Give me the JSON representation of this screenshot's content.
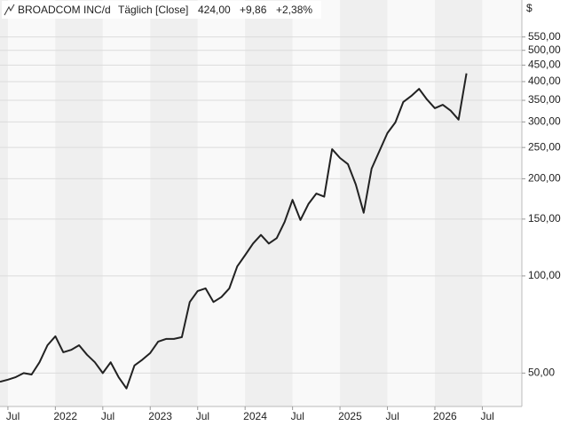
{
  "chart_data": {
    "type": "line",
    "title": "BROADCOM INC/d",
    "subtitle": "Täglich [Close]",
    "last": "424,00",
    "change": "+9,86",
    "change_pct": "+2,38%",
    "unit": "$",
    "color": "#222222",
    "change_color": "#2a9d2a",
    "log_scale": true,
    "grid": true,
    "x": [
      "2021-06",
      "2021-07",
      "2021-08",
      "2021-09",
      "2021-10",
      "2021-11",
      "2021-12",
      "2022-01",
      "2022-02",
      "2022-03",
      "2022-04",
      "2022-05",
      "2022-06",
      "2022-07",
      "2022-08",
      "2022-09",
      "2022-10",
      "2022-11",
      "2022-12",
      "2023-01",
      "2023-02",
      "2023-03",
      "2023-04",
      "2023-05",
      "2023-06",
      "2023-07",
      "2023-08",
      "2023-09",
      "2023-10",
      "2023-11",
      "2023-12",
      "2024-01",
      "2024-02",
      "2024-03",
      "2024-04",
      "2024-05",
      "2024-06",
      "2024-07",
      "2024-08",
      "2024-09",
      "2024-10",
      "2024-11",
      "2024-12",
      "2025-01",
      "2025-02",
      "2025-03",
      "2025-04",
      "2025-05",
      "2025-06",
      "2025-07",
      "2025-08",
      "2025-09",
      "2025-10",
      "2025-11",
      "2025-12",
      "2026-01",
      "2026-02",
      "2026-03",
      "2026-04",
      "2026-05"
    ],
    "values": [
      47,
      47.7,
      48.6,
      50,
      49.5,
      54,
      61,
      65,
      58,
      59,
      61,
      57,
      54,
      50,
      54,
      48.6,
      44.8,
      52.8,
      55,
      57.7,
      62.6,
      63.8,
      63.8,
      64.6,
      83,
      89.8,
      91.5,
      83,
      86,
      91.5,
      107,
      116,
      126,
      134,
      126,
      131,
      147,
      172,
      149,
      167,
      180,
      176,
      247,
      232,
      222,
      192,
      157,
      215,
      244,
      277,
      299,
      346,
      361,
      380,
      352,
      331,
      339,
      325,
      305,
      424
    ],
    "xlim": [
      "2021-06",
      "2026-12"
    ],
    "xticks": [
      {
        "value": "2021-07",
        "label": "Jul"
      },
      {
        "value": "2022-01",
        "label": "2022"
      },
      {
        "value": "2022-07",
        "label": "Jul"
      },
      {
        "value": "2023-01",
        "label": "2023"
      },
      {
        "value": "2023-07",
        "label": "Jul"
      },
      {
        "value": "2024-01",
        "label": "2024"
      },
      {
        "value": "2024-07",
        "label": "Jul"
      },
      {
        "value": "2025-01",
        "label": "2025"
      },
      {
        "value": "2025-07",
        "label": "Jul"
      },
      {
        "value": "2026-01",
        "label": "2026"
      },
      {
        "value": "2026-07",
        "label": "Jul"
      }
    ],
    "ylim": [
      39.4,
      716
    ],
    "yticks": [
      {
        "value": 50,
        "label": "50,00"
      },
      {
        "value": 100,
        "label": "100,00"
      },
      {
        "value": 150,
        "label": "150,00"
      },
      {
        "value": 200,
        "label": "200,00"
      },
      {
        "value": 250,
        "label": "250,00"
      },
      {
        "value": 300,
        "label": "300,00"
      },
      {
        "value": 350,
        "label": "350,00"
      },
      {
        "value": 400,
        "label": "400,00"
      },
      {
        "value": 450,
        "label": "450,00"
      },
      {
        "value": 500,
        "label": "500,00"
      },
      {
        "value": 550,
        "label": "550,00"
      }
    ]
  }
}
